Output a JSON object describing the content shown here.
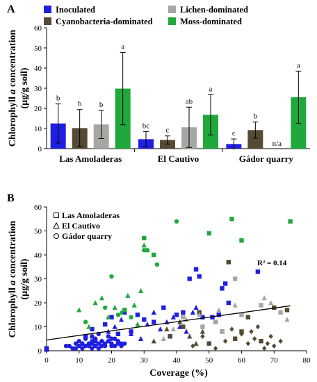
{
  "colors": {
    "inoculated": "#1f1fe0",
    "cyanobacteria": "#564a34",
    "lichen": "#a6a6a3",
    "moss": "#21a83d"
  },
  "chart_data": [
    {
      "type": "bar",
      "panel_label": "A",
      "categories": [
        "Las Amoladeras",
        "El Cautivo",
        "Gádor quarry"
      ],
      "ylabel": "Chlorophyll a concentration (µg/g soil)",
      "ylabel_parts": {
        "line1_pre": "Chlorophyll ",
        "line1_ital": "a",
        "line1_post": " concentration",
        "line2": "(µg/g soil)"
      },
      "ylim": [
        0,
        60
      ],
      "yticks": [
        "0",
        "10",
        "20",
        "30",
        "40",
        "50",
        "60"
      ],
      "legend_placement": "top",
      "grid": false,
      "series": [
        {
          "name": "Inoculated",
          "color_key": "inoculated",
          "values": [
            12.5,
            4.7,
            2.3
          ],
          "errors": [
            9.7,
            3.8,
            2.5
          ],
          "letters": [
            "b",
            "bc",
            "c"
          ]
        },
        {
          "name": "Cyanobacteria-dominated",
          "color_key": "cyanobacteria",
          "values": [
            10.2,
            4.3,
            9.2
          ],
          "errors": [
            9.2,
            2.0,
            4.0
          ],
          "letters": [
            "b",
            "c",
            "b"
          ]
        },
        {
          "name": "Lichen-dominated",
          "color_key": "lichen",
          "values": [
            12.0,
            10.6,
            null
          ],
          "errors": [
            7.0,
            10.0,
            null
          ],
          "letters": [
            "b",
            "ab",
            "n/a"
          ]
        },
        {
          "name": "Moss-dominated",
          "color_key": "moss",
          "values": [
            29.8,
            16.8,
            25.5
          ],
          "errors": [
            18.0,
            10.0,
            13.0
          ],
          "letters": [
            "a",
            "a",
            "a"
          ]
        }
      ]
    },
    {
      "type": "scatter",
      "panel_label": "B",
      "xlabel": "Coverage (%)",
      "ylabel": "Chlorophyll a concentration (µg/g soil)",
      "xlim": [
        0,
        80
      ],
      "ylim": [
        0,
        60
      ],
      "xticks": [
        "0",
        "10",
        "20",
        "30",
        "40",
        "50",
        "60",
        "70",
        "80"
      ],
      "yticks": [
        "0",
        "10",
        "20",
        "30",
        "40",
        "50",
        "60"
      ],
      "annotation": "R² = 0.14",
      "trendline": {
        "slope": 0.19,
        "intercept": 4.5,
        "x_range": [
          0,
          75
        ]
      },
      "legend_placement": "top-left",
      "legend": [
        {
          "name": "Las Amoladeras",
          "marker": "square"
        },
        {
          "name": "El Cautivo",
          "marker": "triangle"
        },
        {
          "name": "Gádor quarry",
          "marker": "circle"
        }
      ],
      "series": [
        {
          "name": "Las Amoladeras inoculated",
          "site": "Las Amoladeras",
          "marker": "square",
          "color_key": "inoculated",
          "x": [
            0,
            0,
            12,
            14,
            15,
            18,
            20,
            22,
            24,
            26,
            28,
            30,
            33,
            36,
            38,
            40,
            42,
            44,
            46,
            47,
            48,
            51,
            53,
            54,
            55,
            56,
            65
          ],
          "y": [
            1,
            0.5,
            6,
            9,
            4,
            11,
            14,
            7,
            16,
            8,
            15,
            13,
            12,
            18,
            6,
            15,
            16,
            30,
            34,
            31,
            14,
            14,
            15,
            26,
            28,
            20,
            33
          ]
        },
        {
          "name": "Las Amoladeras cyanobacteria-dominated",
          "site": "Las Amoladeras",
          "marker": "square",
          "color_key": "cyanobacteria",
          "x": [
            38,
            42,
            47,
            50,
            52,
            54,
            56,
            58,
            60,
            62,
            66,
            70,
            74
          ],
          "y": [
            6,
            10,
            16,
            3,
            12,
            8,
            37,
            5,
            8,
            14,
            4,
            18,
            17
          ]
        },
        {
          "name": "Las Amoladeras lichen-dominated",
          "site": "Las Amoladeras",
          "marker": "square",
          "color_key": "lichen",
          "x": [
            42,
            48,
            52,
            54,
            58,
            60,
            66,
            72
          ],
          "y": [
            14,
            10,
            12,
            8,
            30,
            15,
            19,
            16
          ]
        },
        {
          "name": "Las Amoladeras moss-dominated",
          "site": "Las Amoladeras",
          "marker": "square",
          "color_key": "moss",
          "x": [
            24,
            30,
            33,
            50,
            57,
            60,
            75
          ],
          "y": [
            17,
            47,
            40,
            49,
            55,
            46,
            54
          ]
        },
        {
          "name": "El Cautivo inoculated",
          "site": "El Cautivo",
          "marker": "triangle",
          "color_key": "inoculated",
          "x": [
            11,
            14,
            17,
            19,
            21,
            23,
            26,
            29,
            31,
            33,
            35,
            37,
            39,
            41,
            43,
            45,
            46
          ],
          "y": [
            3,
            6,
            4,
            8,
            10,
            13,
            7,
            5,
            11,
            16,
            9,
            12,
            14,
            10,
            8,
            16,
            18
          ]
        },
        {
          "name": "El Cautivo cyanobacteria-dominated",
          "site": "El Cautivo",
          "marker": "triangle",
          "color_key": "cyanobacteria",
          "x": [
            33,
            37,
            41,
            44,
            46,
            48
          ],
          "y": [
            4,
            9,
            12,
            6,
            3,
            8
          ]
        },
        {
          "name": "El Cautivo lichen-dominated",
          "site": "El Cautivo",
          "marker": "triangle",
          "color_key": "lichen",
          "x": [
            36,
            39,
            43,
            47,
            53,
            58,
            67,
            69,
            74
          ],
          "y": [
            5,
            9,
            13,
            15,
            17,
            19,
            22,
            20,
            13
          ]
        },
        {
          "name": "El Cautivo moss-dominated",
          "site": "El Cautivo",
          "marker": "triangle",
          "color_key": "moss",
          "x": [
            10,
            13,
            15,
            17,
            19,
            21,
            23,
            25,
            27,
            28,
            29,
            30,
            31
          ],
          "y": [
            17,
            10,
            20,
            22,
            14,
            18,
            16,
            23,
            19,
            11,
            25,
            44,
            42
          ]
        },
        {
          "name": "Gádor quarry inoculated",
          "site": "Gádor quarry",
          "marker": "circle",
          "color_key": "inoculated",
          "x": [
            6,
            7,
            8,
            9,
            9,
            10,
            10,
            11,
            11,
            12,
            12,
            13,
            13,
            14,
            14,
            14,
            15,
            15,
            16,
            16,
            17,
            17,
            18,
            18,
            19,
            19,
            20,
            20,
            21,
            21,
            22,
            22,
            23,
            23,
            24,
            12,
            16,
            20,
            14
          ],
          "y": [
            2,
            2,
            1,
            3,
            1,
            2,
            4,
            3,
            1,
            2,
            5,
            3,
            2,
            4,
            1,
            3,
            2,
            5,
            3,
            1,
            4,
            2,
            3,
            2,
            6,
            4,
            2,
            3,
            5,
            2,
            3,
            4,
            2,
            3,
            3,
            6,
            7,
            5,
            6
          ]
        },
        {
          "name": "Gádor quarry cyanobacteria-dominated",
          "site": "Gádor quarry",
          "marker": "diamond",
          "color_key": "cyanobacteria",
          "x": [
            45,
            48,
            50,
            52,
            55,
            57,
            58,
            60,
            62,
            63,
            64,
            65,
            67,
            68,
            69,
            70,
            72
          ],
          "y": [
            2,
            6,
            3,
            1,
            4,
            9,
            5,
            7,
            3,
            8,
            5,
            10,
            1,
            3,
            6,
            2,
            4
          ]
        },
        {
          "name": "Gádor quarry moss-dominated",
          "site": "Gádor quarry",
          "marker": "circle",
          "color_key": "moss",
          "x": [
            12,
            18,
            20,
            22,
            26,
            30,
            31,
            34,
            40
          ],
          "y": [
            12,
            18,
            31,
            15,
            14,
            42,
            42,
            36,
            54
          ]
        }
      ]
    }
  ]
}
